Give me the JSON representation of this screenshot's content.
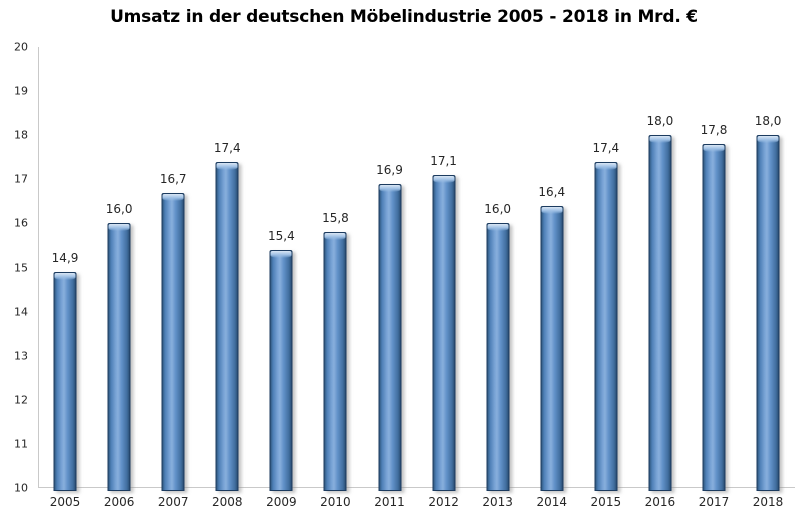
{
  "chart_data": {
    "type": "bar",
    "title": "Umsatz in der deutschen Möbelindustrie 2005 - 2018 in Mrd. €",
    "categories": [
      "2005",
      "2006",
      "2007",
      "2008",
      "2009",
      "2010",
      "2011",
      "2012",
      "2013",
      "2014",
      "2015",
      "2016",
      "2017",
      "2018"
    ],
    "values": [
      14.9,
      16.0,
      16.7,
      17.4,
      15.4,
      15.8,
      16.9,
      17.1,
      16.0,
      16.4,
      17.4,
      18.0,
      17.8,
      18.0
    ],
    "value_labels": [
      "14,9",
      "16,0",
      "16,7",
      "17,4",
      "15,4",
      "15,8",
      "16,9",
      "17,1",
      "16,0",
      "16,4",
      "17,4",
      "18,0",
      "17,8",
      "18,0"
    ],
    "xlabel": "",
    "ylabel": "",
    "ylim": [
      10,
      20
    ],
    "yticks": [
      20,
      19,
      18,
      17,
      16,
      15,
      14,
      13,
      12,
      11,
      10
    ],
    "grid": false,
    "legend": null,
    "decimal_separator": ",",
    "colors": {
      "bar_fill": "#4f81bd",
      "bar_highlight": "#88afdc",
      "bar_edge": "#2b4f74",
      "bar_border": "#1c3b5f",
      "axis_line": "#c9c9c9",
      "label_text": "#262626",
      "title_text": "#000000",
      "background": "#ffffff"
    }
  }
}
